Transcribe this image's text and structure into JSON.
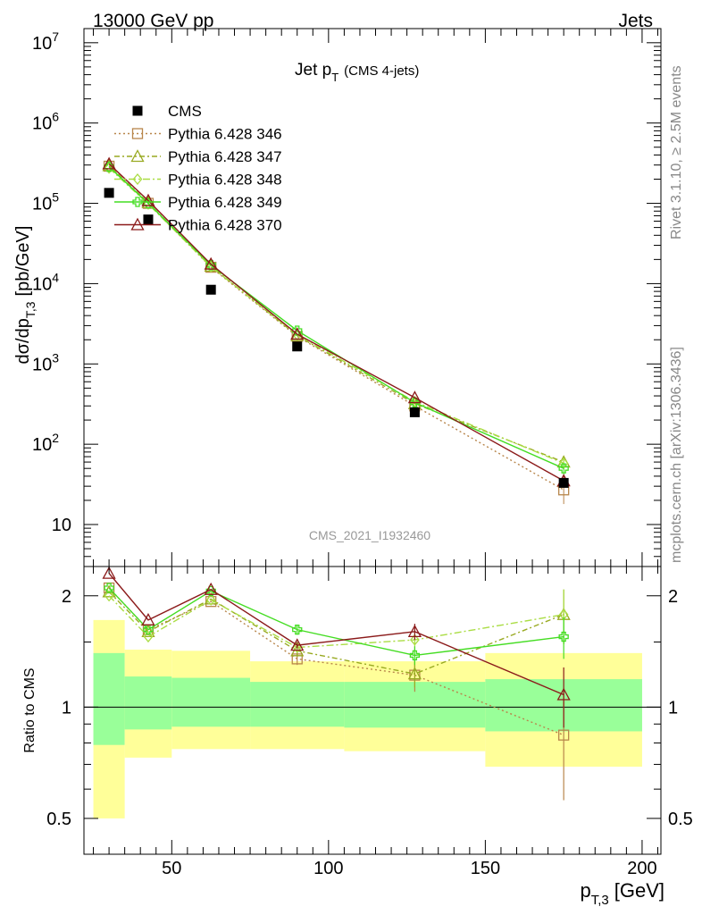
{
  "header": {
    "left": "13000 GeV pp",
    "right": "Jets"
  },
  "side_texts": {
    "rivet": "Rivet 3.1.10, ≥ 2.5M events",
    "mcplots": "mcplots.cern.ch [arXiv:1306.3436]"
  },
  "chart_data": [
    {
      "type": "line",
      "title_main": "Jet p",
      "title_sub": "T",
      "title_extra": "(CMS 4-jets)",
      "ylabel_main": "dσ/dp",
      "ylabel_sub": "T,3",
      "ylabel_unit": "[pb/GeV]",
      "watermark": "CMS_2021_I1932460",
      "log_y": true,
      "xlim": [
        22,
        206
      ],
      "ylim": [
        3,
        15000000
      ],
      "y_ticks": [
        {
          "v": 10,
          "label": "10"
        },
        {
          "v": 100,
          "label": "10",
          "exp": "2"
        },
        {
          "v": 1000,
          "label": "10",
          "exp": "3"
        },
        {
          "v": 10000,
          "label": "10",
          "exp": "4"
        },
        {
          "v": 100000,
          "label": "10",
          "exp": "5"
        },
        {
          "v": 1000000,
          "label": "10",
          "exp": "6"
        },
        {
          "v": 10000000,
          "label": "10",
          "exp": "7"
        }
      ],
      "legend_position": "top-left",
      "data": {
        "name": "CMS",
        "x": [
          30,
          42.5,
          62.5,
          90,
          127.5,
          175
        ],
        "y": [
          135000,
          63000,
          8400,
          1650,
          250,
          33
        ]
      },
      "series": [
        {
          "name": "Pythia 6.428 346",
          "color": "#b8864b",
          "marker": "square",
          "dash": "2,3",
          "x": [
            30,
            42.5,
            62.5,
            90,
            127.5,
            175
          ],
          "y": [
            290000,
            100000,
            16000,
            2200,
            300,
            27
          ],
          "err": [
            0,
            0,
            0,
            0,
            0,
            9
          ]
        },
        {
          "name": "Pythia 6.428 347",
          "color": "#99aa22",
          "marker": "triangle",
          "dash": "6,3,2,3",
          "x": [
            30,
            42.5,
            62.5,
            90,
            127.5,
            175
          ],
          "y": [
            295000,
            102000,
            16500,
            2250,
            320,
            60
          ],
          "err": [
            0,
            0,
            0,
            0,
            0,
            10
          ]
        },
        {
          "name": "Pythia 6.428 348",
          "color": "#aadd44",
          "marker": "diamond",
          "dash": "8,3,2,3",
          "x": [
            30,
            42.5,
            62.5,
            90,
            127.5,
            175
          ],
          "y": [
            275000,
            98000,
            16200,
            2300,
            340,
            58
          ],
          "err": [
            0,
            0,
            0,
            0,
            0,
            10
          ]
        },
        {
          "name": "Pythia 6.428 349",
          "color": "#44dd22",
          "marker": "cross",
          "dash": "",
          "x": [
            30,
            42.5,
            62.5,
            90,
            127.5,
            175
          ],
          "y": [
            285000,
            100000,
            17000,
            2600,
            330,
            50
          ],
          "err": [
            0,
            0,
            0,
            0,
            0,
            8
          ]
        },
        {
          "name": "Pythia 6.428 370",
          "color": "#8b1a1a",
          "marker": "triangle",
          "dash": "",
          "x": [
            30,
            42.5,
            62.5,
            90,
            127.5,
            175
          ],
          "y": [
            310000,
            108000,
            17500,
            2350,
            380,
            35
          ],
          "err": [
            0,
            0,
            0,
            0,
            0,
            6
          ]
        }
      ]
    },
    {
      "type": "line",
      "ylabel": "Ratio to CMS",
      "xlabel_main": "p",
      "xlabel_sub": "T,3",
      "xlabel_unit": "[GeV]",
      "log_y": true,
      "xlim": [
        22,
        206
      ],
      "ylim": [
        0.4,
        2.4
      ],
      "x_ticks": [
        50,
        100,
        150,
        200
      ],
      "y_ticks": [
        {
          "v": 0.5,
          "label": "0.5"
        },
        {
          "v": 1,
          "label": "1"
        },
        {
          "v": 2,
          "label": "2"
        }
      ],
      "bands": [
        {
          "x0": 25,
          "x1": 35,
          "g_lo": 0.79,
          "g_hi": 1.4,
          "y_lo": 0.5,
          "y_hi": 1.72
        },
        {
          "x0": 35,
          "x1": 50,
          "g_lo": 0.87,
          "g_hi": 1.21,
          "y_lo": 0.73,
          "y_hi": 1.43
        },
        {
          "x0": 50,
          "x1": 75,
          "g_lo": 0.885,
          "g_hi": 1.2,
          "y_lo": 0.77,
          "y_hi": 1.42
        },
        {
          "x0": 75,
          "x1": 105,
          "g_lo": 0.885,
          "g_hi": 1.17,
          "y_lo": 0.77,
          "y_hi": 1.33
        },
        {
          "x0": 105,
          "x1": 150,
          "g_lo": 0.88,
          "g_hi": 1.17,
          "y_lo": 0.76,
          "y_hi": 1.33
        },
        {
          "x0": 150,
          "x1": 200,
          "g_lo": 0.86,
          "g_hi": 1.19,
          "y_lo": 0.69,
          "y_hi": 1.4
        }
      ],
      "series": [
        {
          "name": "Pythia 6.428 346",
          "x": [
            30,
            42.5,
            62.5,
            90,
            127.5,
            175
          ],
          "y": [
            2.1,
            1.62,
            1.93,
            1.35,
            1.22,
            0.84
          ],
          "err_lo": [
            0,
            0,
            0,
            0.05,
            0.12,
            0.28
          ],
          "err_hi": [
            0,
            0,
            0,
            0.05,
            0.12,
            0.28
          ]
        },
        {
          "name": "Pythia 6.428 347",
          "x": [
            30,
            42.5,
            62.5,
            90,
            127.5,
            175
          ],
          "y": [
            2.05,
            1.6,
            1.96,
            1.42,
            1.23,
            1.78
          ],
          "err_lo": [
            0,
            0,
            0,
            0.05,
            0.1,
            0.3
          ],
          "err_hi": [
            0,
            0,
            0,
            0.05,
            0.1,
            0.3
          ]
        },
        {
          "name": "Pythia 6.428 348",
          "x": [
            30,
            42.5,
            62.5,
            90,
            127.5,
            175
          ],
          "y": [
            2.0,
            1.55,
            1.95,
            1.45,
            1.52,
            1.78
          ],
          "err_lo": [
            0,
            0,
            0,
            0.05,
            0.1,
            0.3
          ],
          "err_hi": [
            0,
            0,
            0,
            0.05,
            0.1,
            0.3
          ]
        },
        {
          "name": "Pythia 6.428 349",
          "x": [
            30,
            42.5,
            62.5,
            90,
            127.5,
            175
          ],
          "y": [
            2.1,
            1.62,
            2.06,
            1.62,
            1.38,
            1.55
          ],
          "err_lo": [
            0,
            0,
            0,
            0.05,
            0.08,
            0.2
          ],
          "err_hi": [
            0,
            0,
            0,
            0.05,
            0.08,
            0.2
          ]
        },
        {
          "name": "Pythia 6.428 370",
          "x": [
            30,
            42.5,
            62.5,
            90,
            127.5,
            175
          ],
          "y": [
            2.3,
            1.72,
            2.08,
            1.47,
            1.6,
            1.08
          ],
          "err_lo": [
            0,
            0,
            0,
            0.03,
            0.08,
            0.2
          ],
          "err_hi": [
            0,
            0,
            0,
            0.03,
            0.08,
            0.2
          ]
        }
      ]
    }
  ]
}
